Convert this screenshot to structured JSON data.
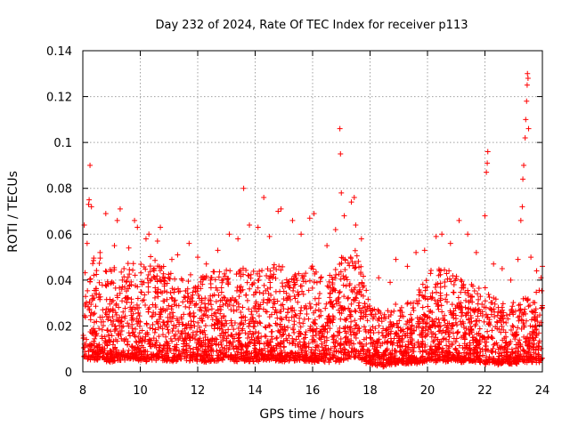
{
  "chart_data": {
    "type": "scatter",
    "title": "Day 232 of 2024, Rate Of TEC Index for receiver p113",
    "xlabel": "GPS time / hours",
    "ylabel": "ROTI / TECUs",
    "xlim": [
      8,
      24
    ],
    "ylim": [
      0,
      0.14
    ],
    "x_ticks": [
      8,
      10,
      12,
      14,
      16,
      18,
      20,
      22,
      24
    ],
    "x_tick_labels": [
      "8",
      "10",
      "12",
      "14",
      "16",
      "18",
      "20",
      "22",
      "24"
    ],
    "y_ticks": [
      0,
      0.02,
      0.04,
      0.06,
      0.08,
      0.1,
      0.12,
      0.14
    ],
    "y_tick_labels": [
      "0",
      "0.02",
      "0.04",
      "0.06",
      "0.08",
      "0.1",
      "0.12",
      "0.14"
    ],
    "grid": true,
    "marker": "+",
    "marker_color": "#ff0000",
    "series": [
      {
        "name": "ROTI",
        "points": [
          [
            8.05,
            0.064
          ],
          [
            8.15,
            0.056
          ],
          [
            8.2,
            0.073
          ],
          [
            8.22,
            0.075
          ],
          [
            8.25,
            0.09
          ],
          [
            8.3,
            0.072
          ],
          [
            8.6,
            0.052
          ],
          [
            8.8,
            0.069
          ],
          [
            9.1,
            0.055
          ],
          [
            9.2,
            0.066
          ],
          [
            9.3,
            0.071
          ],
          [
            9.6,
            0.054
          ],
          [
            9.8,
            0.066
          ],
          [
            9.9,
            0.063
          ],
          [
            10.2,
            0.058
          ],
          [
            10.3,
            0.06
          ],
          [
            10.6,
            0.057
          ],
          [
            10.7,
            0.063
          ],
          [
            11.1,
            0.049
          ],
          [
            11.3,
            0.051
          ],
          [
            11.7,
            0.056
          ],
          [
            12.0,
            0.05
          ],
          [
            12.3,
            0.047
          ],
          [
            12.7,
            0.053
          ],
          [
            13.1,
            0.06
          ],
          [
            13.4,
            0.058
          ],
          [
            13.6,
            0.08
          ],
          [
            13.8,
            0.064
          ],
          [
            14.1,
            0.063
          ],
          [
            14.3,
            0.076
          ],
          [
            14.5,
            0.059
          ],
          [
            14.8,
            0.07
          ],
          [
            14.9,
            0.071
          ],
          [
            15.3,
            0.066
          ],
          [
            15.6,
            0.06
          ],
          [
            15.9,
            0.067
          ],
          [
            16.05,
            0.069
          ],
          [
            16.5,
            0.055
          ],
          [
            16.8,
            0.062
          ],
          [
            16.95,
            0.106
          ],
          [
            16.97,
            0.095
          ],
          [
            17.0,
            0.078
          ],
          [
            17.1,
            0.068
          ],
          [
            17.35,
            0.074
          ],
          [
            17.45,
            0.076
          ],
          [
            17.5,
            0.064
          ],
          [
            17.7,
            0.058
          ],
          [
            18.3,
            0.041
          ],
          [
            18.7,
            0.039
          ],
          [
            18.9,
            0.049
          ],
          [
            19.3,
            0.046
          ],
          [
            19.6,
            0.052
          ],
          [
            19.9,
            0.053
          ],
          [
            20.3,
            0.059
          ],
          [
            20.5,
            0.06
          ],
          [
            20.8,
            0.056
          ],
          [
            21.1,
            0.066
          ],
          [
            21.4,
            0.06
          ],
          [
            21.7,
            0.052
          ],
          [
            22.0,
            0.068
          ],
          [
            22.05,
            0.087
          ],
          [
            22.08,
            0.091
          ],
          [
            22.1,
            0.096
          ],
          [
            22.3,
            0.047
          ],
          [
            22.6,
            0.045
          ],
          [
            22.9,
            0.04
          ],
          [
            23.15,
            0.049
          ],
          [
            23.25,
            0.066
          ],
          [
            23.3,
            0.072
          ],
          [
            23.32,
            0.084
          ],
          [
            23.35,
            0.09
          ],
          [
            23.4,
            0.102
          ],
          [
            23.42,
            0.11
          ],
          [
            23.45,
            0.118
          ],
          [
            23.47,
            0.125
          ],
          [
            23.48,
            0.13
          ],
          [
            23.5,
            0.128
          ],
          [
            23.52,
            0.106
          ],
          [
            23.6,
            0.05
          ],
          [
            23.8,
            0.044
          ],
          [
            23.95,
            0.041
          ],
          [
            24.0,
            0.046
          ]
        ],
        "density_envelope": {
          "hours": [
            8,
            8.5,
            9,
            9.5,
            10,
            10.5,
            11,
            11.5,
            12,
            12.5,
            13,
            13.5,
            14,
            14.5,
            15,
            15.5,
            16,
            16.5,
            17,
            17.5,
            18,
            18.5,
            19,
            19.5,
            20,
            20.5,
            21,
            21.5,
            22,
            22.5,
            23,
            23.5,
            24
          ],
          "upper": [
            0.045,
            0.05,
            0.046,
            0.047,
            0.048,
            0.052,
            0.044,
            0.045,
            0.042,
            0.043,
            0.045,
            0.046,
            0.048,
            0.047,
            0.046,
            0.044,
            0.046,
            0.04,
            0.05,
            0.056,
            0.032,
            0.025,
            0.03,
            0.032,
            0.043,
            0.046,
            0.044,
            0.04,
            0.036,
            0.03,
            0.03,
            0.033,
            0.036
          ],
          "lower": [
            0.006,
            0.006,
            0.005,
            0.006,
            0.005,
            0.006,
            0.005,
            0.006,
            0.005,
            0.005,
            0.006,
            0.005,
            0.005,
            0.006,
            0.005,
            0.006,
            0.005,
            0.005,
            0.005,
            0.006,
            0.004,
            0.003,
            0.004,
            0.004,
            0.005,
            0.005,
            0.005,
            0.005,
            0.004,
            0.004,
            0.004,
            0.005,
            0.005
          ]
        }
      }
    ]
  }
}
